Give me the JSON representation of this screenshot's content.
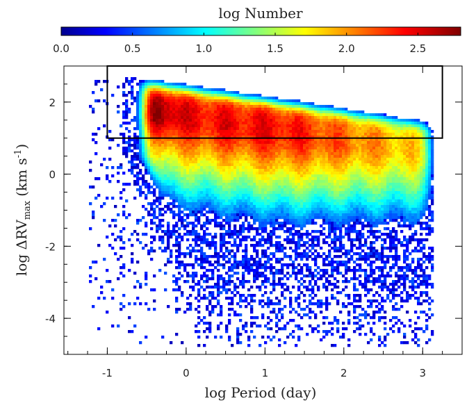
{
  "chart_data": {
    "type": "heatmap",
    "colorbar": {
      "label": "log Number",
      "range": [
        0.0,
        2.8
      ],
      "tick_values": [
        0.0,
        0.5,
        1.0,
        1.5,
        2.0,
        2.5
      ],
      "tick_labels": [
        "0.0",
        "0.5",
        "1.0",
        "1.5",
        "2.0",
        "2.5"
      ],
      "placement": "top"
    },
    "x_axis": {
      "label": "log Period (day)",
      "range": [
        -1.55,
        3.5
      ],
      "tick_values": [
        -1,
        0,
        1,
        2,
        3
      ],
      "tick_labels": [
        "-1",
        "0",
        "1",
        "2",
        "3"
      ]
    },
    "y_axis": {
      "label": "log ΔRV",
      "label_subscript": "max",
      "label_unit": "(km s",
      "label_unit_superscript": "-1",
      "label_unit_close": ")",
      "range": [
        -5.0,
        3.0
      ],
      "tick_values": [
        -4,
        -2,
        0,
        2
      ],
      "tick_labels": [
        "-4",
        "-2",
        "0",
        "2"
      ]
    },
    "selection_box": {
      "x_min": -1.0,
      "x_max": 3.25,
      "y_min": 1.0,
      "y_max": 3.0
    },
    "density_model": {
      "x_left_edge": -0.6,
      "x_right_edge": 3.1,
      "upper_edge_at_left": 2.55,
      "upper_edge_at_right": 1.35,
      "peak_log_number": 2.8,
      "peak_position": [
        -0.45,
        1.7
      ]
    }
  }
}
